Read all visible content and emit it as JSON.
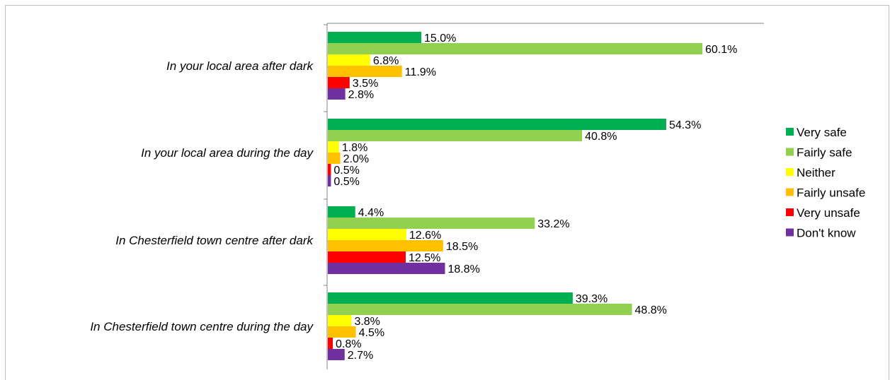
{
  "chart_data": {
    "type": "bar",
    "orientation": "horizontal",
    "categories": [
      "In your local area after dark",
      "In your local area during the day",
      "In Chesterfield town centre after dark",
      "In Chesterfield town centre during the day"
    ],
    "series": [
      {
        "name": "Very safe",
        "color": "#00b050",
        "values": [
          15.0,
          54.3,
          4.4,
          39.3
        ],
        "labels": [
          "15.0%",
          "54.3%",
          "4.4%",
          "39.3%"
        ]
      },
      {
        "name": "Fairly safe",
        "color": "#92d050",
        "values": [
          60.1,
          40.8,
          33.2,
          48.8
        ],
        "labels": [
          "60.1%",
          "40.8%",
          "33.2%",
          "48.8%"
        ]
      },
      {
        "name": "Neither",
        "color": "#ffff00",
        "values": [
          6.8,
          1.8,
          12.6,
          3.8
        ],
        "labels": [
          "6.8%",
          "1.8%",
          "12.6%",
          "3.8%"
        ]
      },
      {
        "name": "Fairly unsafe",
        "color": "#ffc000",
        "values": [
          11.9,
          2.0,
          18.5,
          4.5
        ],
        "labels": [
          "11.9%",
          "2.0%",
          "18.5%",
          "4.5%"
        ]
      },
      {
        "name": "Very unsafe",
        "color": "#ff0000",
        "values": [
          3.5,
          0.5,
          12.5,
          0.8
        ],
        "labels": [
          "3.5%",
          "0.5%",
          "12.5%",
          "0.8%"
        ]
      },
      {
        "name": "Don't know",
        "color": "#7030a0",
        "values": [
          2.8,
          0.5,
          18.8,
          2.7
        ],
        "labels": [
          "2.8%",
          "0.5%",
          "18.8%",
          "2.7%"
        ]
      }
    ],
    "xlim": [
      0,
      80
    ],
    "grid": false,
    "legend_position": "right",
    "title": "",
    "xlabel": "",
    "ylabel": ""
  }
}
